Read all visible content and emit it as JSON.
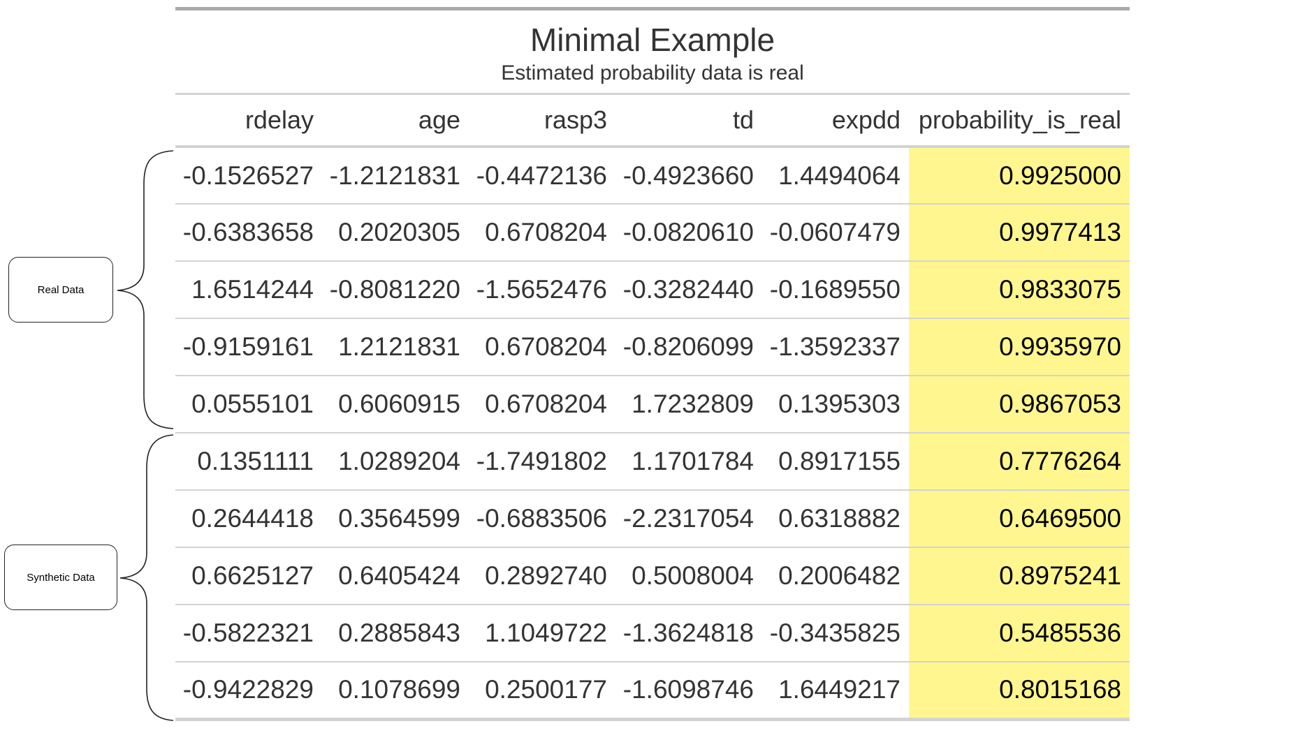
{
  "table": {
    "title": "Minimal Example",
    "subtitle": "Estimated probability data is real",
    "columns": [
      "rdelay",
      "age",
      "rasp3",
      "td",
      "expdd",
      "probability_is_real"
    ],
    "rows": [
      [
        "-0.1526527",
        "-1.2121831",
        "-0.4472136",
        "-0.4923660",
        "1.4494064",
        "0.9925000"
      ],
      [
        "-0.6383658",
        "0.2020305",
        "0.6708204",
        "-0.0820610",
        "-0.0607479",
        "0.9977413"
      ],
      [
        "1.6514244",
        "-0.8081220",
        "-1.5652476",
        "-0.3282440",
        "-0.1689550",
        "0.9833075"
      ],
      [
        "-0.9159161",
        "1.2121831",
        "0.6708204",
        "-0.8206099",
        "-1.3592337",
        "0.9935970"
      ],
      [
        "0.0555101",
        "0.6060915",
        "0.6708204",
        "1.7232809",
        "0.1395303",
        "0.9867053"
      ],
      [
        "0.1351111",
        "1.0289204",
        "-1.7491802",
        "1.1701784",
        "0.8917155",
        "0.7776264"
      ],
      [
        "0.2644418",
        "0.3564599",
        "-0.6883506",
        "-2.2317054",
        "0.6318882",
        "0.6469500"
      ],
      [
        "0.6625127",
        "0.6405424",
        "0.2892740",
        "0.5008004",
        "0.2006482",
        "0.8975241"
      ],
      [
        "-0.5822321",
        "0.2885843",
        "1.1049722",
        "-1.3624818",
        "-0.3435825",
        "0.5485536"
      ],
      [
        "-0.9422829",
        "0.1078699",
        "0.2500177",
        "-1.6098746",
        "1.6449217",
        "0.8015168"
      ]
    ],
    "highlight_color": "#fff68f"
  },
  "annotations": {
    "real_label": "Real Data",
    "synthetic_label": "Synthetic Data"
  }
}
